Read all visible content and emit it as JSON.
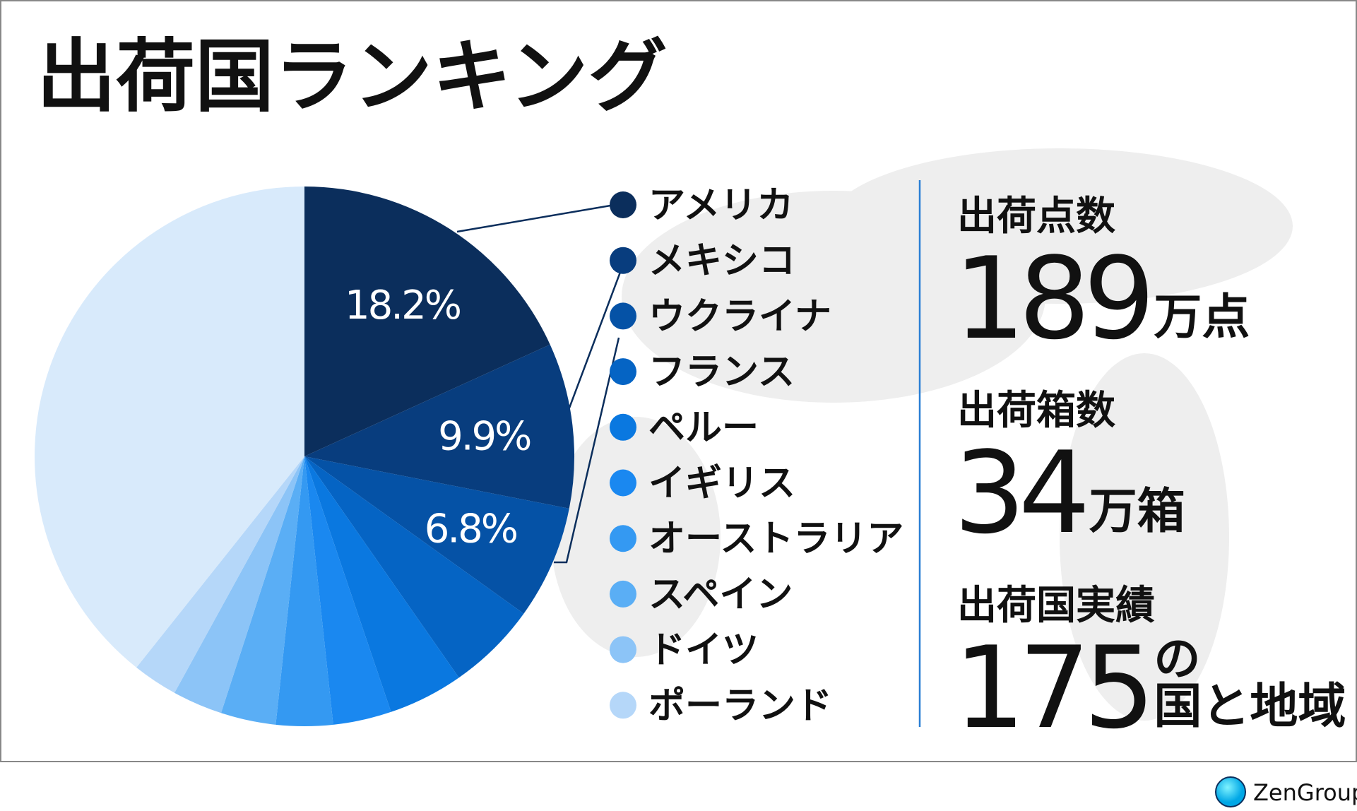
{
  "chart_data": {
    "type": "pie",
    "title": "出荷国ランキング",
    "categories": [
      "アメリカ",
      "メキシコ",
      "ウクライナ",
      "フランス",
      "ペルー",
      "イギリス",
      "オーストラリア",
      "スペイン",
      "ドイツ",
      "ポーランド",
      null
    ],
    "values": [
      18.2,
      9.9,
      6.8,
      5.4,
      4.5,
      3.5,
      3.4,
      3.3,
      3.0,
      2.7,
      39.3
    ],
    "value_labels": [
      "18.2%",
      "9.9%",
      "6.8%",
      null,
      null,
      null,
      null,
      null,
      null,
      null,
      null
    ],
    "colors": [
      "#0b2e5c",
      "#083d7e",
      "#0552a6",
      "#0564c4",
      "#0a78e0",
      "#1a88f0",
      "#3499f2",
      "#5aaef5",
      "#8cc4f7",
      "#b5d7f9",
      "#d8eafb"
    ],
    "stats": [
      {
        "label": "出荷点数",
        "value": "189",
        "unit": "万点"
      },
      {
        "label": "出荷箱数",
        "value": "34",
        "unit": "万箱"
      },
      {
        "label": "出荷国実績",
        "value": "175",
        "unit_top": "の",
        "unit": "国と地域"
      }
    ],
    "brand": "ZenGroup"
  }
}
